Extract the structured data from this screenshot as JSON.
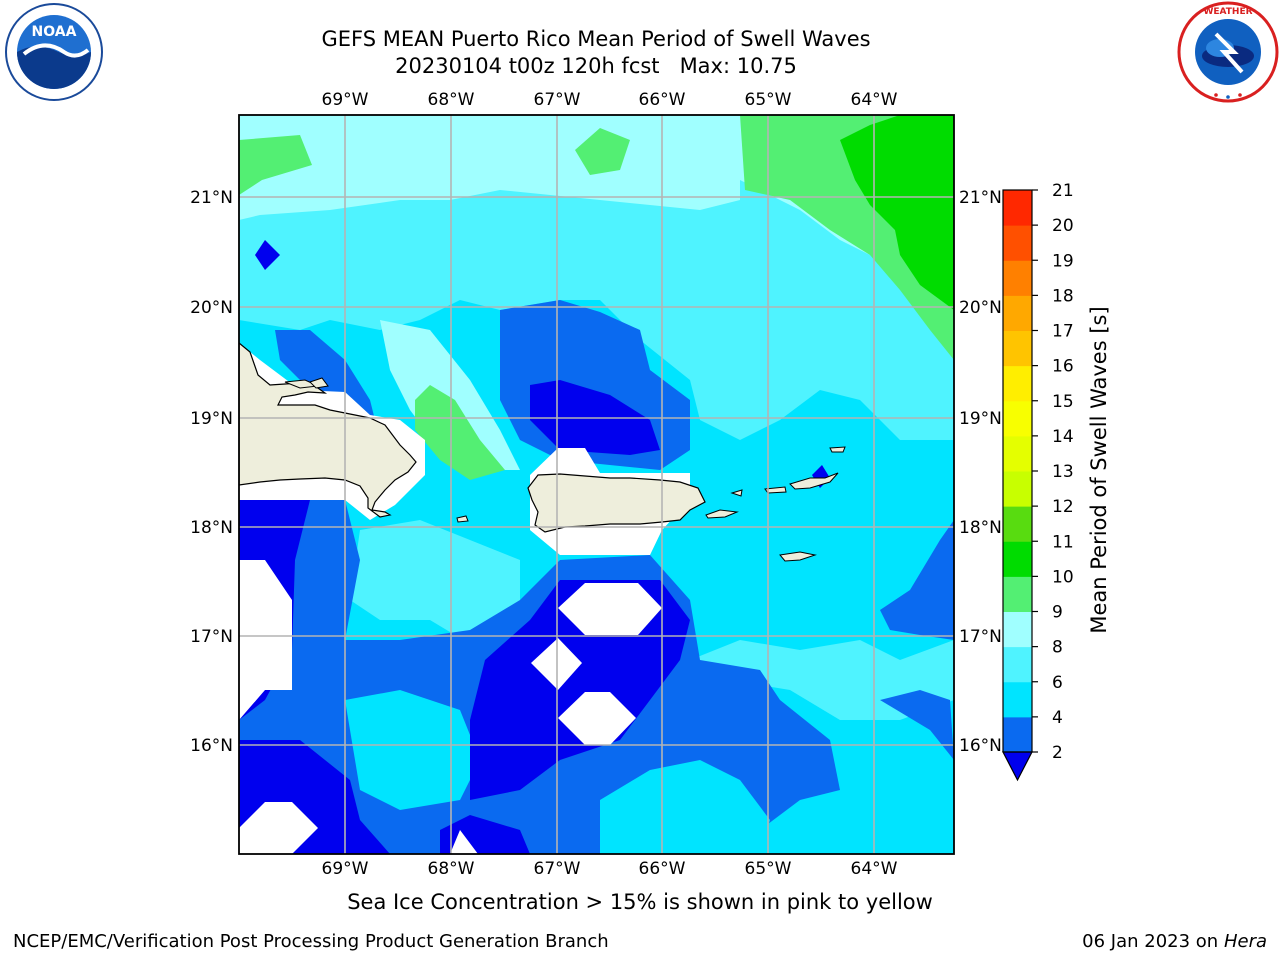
{
  "title": {
    "line1": "GEFS MEAN Puerto Rico Mean Period of Swell Waves",
    "line2": "20230104 t00z 120h fcst   Max: 10.75"
  },
  "logos": {
    "left": {
      "icon": "noaa-logo",
      "text": "NOAA",
      "ring_text": "NATIONAL OCEANIC AND ATMOSPHERIC ADMINISTRATION · U.S. DEPARTMENT OF COMMERCE"
    },
    "right": {
      "icon": "nws-logo",
      "ring_text": "NATIONAL WEATHER SERVICE"
    }
  },
  "map": {
    "lon_labels": [
      "69°W",
      "68°W",
      "67°W",
      "66°W",
      "65°W",
      "64°W"
    ],
    "lat_labels": [
      "21°N",
      "20°N",
      "19°N",
      "18°N",
      "17°N",
      "16°N"
    ],
    "lon_range": [
      -70.0,
      -63.25
    ],
    "lat_range": [
      15.0,
      21.75
    ],
    "gridlines": true,
    "land_color": "#eeeedc",
    "coastline_color": "#000000"
  },
  "colorbar": {
    "label": "Mean Period of Swell Waves [s]",
    "ticks": [
      "2",
      "4",
      "6",
      "8",
      "9",
      "10",
      "11",
      "12",
      "13",
      "14",
      "15",
      "16",
      "17",
      "18",
      "19",
      "20",
      "21"
    ],
    "levels": [
      {
        "from": 2,
        "to": 4,
        "color": "#0a6af0"
      },
      {
        "from": 4,
        "to": 6,
        "color": "#00e4ff"
      },
      {
        "from": 6,
        "to": 8,
        "color": "#4ff3ff"
      },
      {
        "from": 8,
        "to": 9,
        "color": "#a0ffff"
      },
      {
        "from": 9,
        "to": 10,
        "color": "#53ef73"
      },
      {
        "from": 10,
        "to": 11,
        "color": "#00dc00"
      },
      {
        "from": 11,
        "to": 12,
        "color": "#58dc10"
      },
      {
        "from": 12,
        "to": 13,
        "color": "#c8ff00"
      },
      {
        "from": 13,
        "to": 14,
        "color": "#e4ff00"
      },
      {
        "from": 14,
        "to": 15,
        "color": "#f8ff00"
      },
      {
        "from": 15,
        "to": 16,
        "color": "#ffee00"
      },
      {
        "from": 16,
        "to": 17,
        "color": "#ffc400"
      },
      {
        "from": 17,
        "to": 18,
        "color": "#ffa800"
      },
      {
        "from": 18,
        "to": 19,
        "color": "#ff8000"
      },
      {
        "from": 19,
        "to": 20,
        "color": "#ff5000"
      },
      {
        "from": 20,
        "to": 21,
        "color": "#ff2800"
      }
    ],
    "extend_min_color": "#0000ee"
  },
  "ice_note": "Sea Ice Concentration > 15% is shown in pink to yellow",
  "footer": {
    "left": "NCEP/EMC/Verification Post Processing Product Generation Branch",
    "right_prefix": "06 Jan 2023 on ",
    "right_machine": "Hera"
  }
}
